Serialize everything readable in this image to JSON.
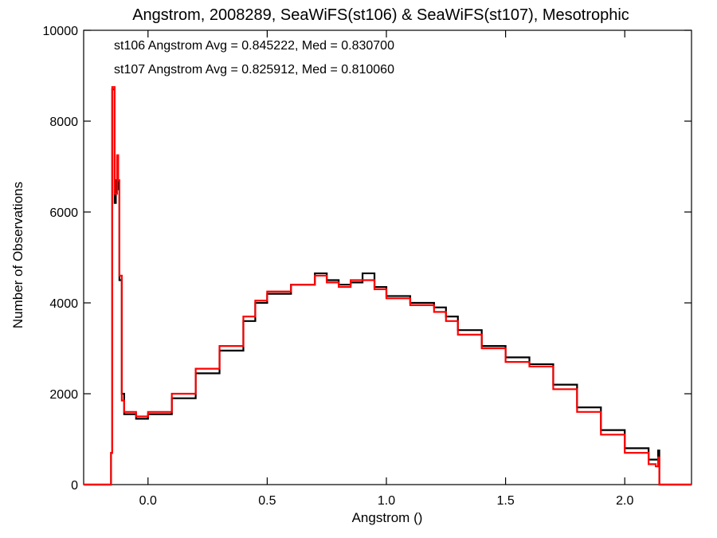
{
  "chart_data": {
    "type": "line",
    "title": "Angstrom, 2008289, SeaWiFS(st106) & SeaWiFS(st107), Mesotrophic",
    "xlabel": "Angstrom ()",
    "ylabel": "Number of Observations",
    "xlim": [
      -0.27,
      2.28
    ],
    "ylim": [
      0,
      10000
    ],
    "x_ticks": [
      0.0,
      0.5,
      1.0,
      1.5,
      2.0
    ],
    "x_tick_labels": [
      "0.0",
      "0.5",
      "1.0",
      "1.5",
      "2.0"
    ],
    "y_ticks": [
      0,
      2000,
      4000,
      6000,
      8000,
      10000
    ],
    "y_tick_labels": [
      "0",
      "2000",
      "4000",
      "6000",
      "8000",
      "10000"
    ],
    "grid": false,
    "step": true,
    "annotations": [
      {
        "text": "st106 Angstrom Avg = 0.845222, Med = 0.830700",
        "color": "#000000"
      },
      {
        "text": "st107 Angstrom Avg = 0.825912, Med = 0.810060",
        "color": "#ff0000"
      }
    ],
    "series": [
      {
        "color": "#000000",
        "points": [
          [
            -0.27,
            0
          ],
          [
            -0.16,
            0
          ],
          [
            -0.155,
            700
          ],
          [
            -0.15,
            8700
          ],
          [
            -0.14,
            6200
          ],
          [
            -0.135,
            6700
          ],
          [
            -0.125,
            6500
          ],
          [
            -0.12,
            4500
          ],
          [
            -0.11,
            2000
          ],
          [
            -0.1,
            1550
          ],
          [
            -0.05,
            1450
          ],
          [
            0.0,
            1550
          ],
          [
            0.1,
            1900
          ],
          [
            0.2,
            2450
          ],
          [
            0.3,
            2950
          ],
          [
            0.4,
            3600
          ],
          [
            0.45,
            4000
          ],
          [
            0.5,
            4200
          ],
          [
            0.6,
            4400
          ],
          [
            0.7,
            4650
          ],
          [
            0.75,
            4500
          ],
          [
            0.8,
            4400
          ],
          [
            0.85,
            4450
          ],
          [
            0.9,
            4650
          ],
          [
            0.95,
            4350
          ],
          [
            1.0,
            4150
          ],
          [
            1.1,
            4000
          ],
          [
            1.2,
            3900
          ],
          [
            1.25,
            3700
          ],
          [
            1.3,
            3400
          ],
          [
            1.4,
            3050
          ],
          [
            1.5,
            2800
          ],
          [
            1.6,
            2650
          ],
          [
            1.7,
            2200
          ],
          [
            1.8,
            1700
          ],
          [
            1.9,
            1200
          ],
          [
            2.0,
            800
          ],
          [
            2.1,
            550
          ],
          [
            2.13,
            550
          ],
          [
            2.14,
            750
          ],
          [
            2.145,
            0
          ],
          [
            2.28,
            0
          ]
        ]
      },
      {
        "color": "#ff0000",
        "points": [
          [
            -0.27,
            0
          ],
          [
            -0.16,
            0
          ],
          [
            -0.155,
            700
          ],
          [
            -0.15,
            8750
          ],
          [
            -0.14,
            6400
          ],
          [
            -0.13,
            7250
          ],
          [
            -0.125,
            6700
          ],
          [
            -0.12,
            4600
          ],
          [
            -0.11,
            1850
          ],
          [
            -0.1,
            1600
          ],
          [
            -0.05,
            1500
          ],
          [
            0.0,
            1600
          ],
          [
            0.1,
            2000
          ],
          [
            0.2,
            2550
          ],
          [
            0.3,
            3050
          ],
          [
            0.4,
            3700
          ],
          [
            0.45,
            4050
          ],
          [
            0.5,
            4250
          ],
          [
            0.6,
            4400
          ],
          [
            0.7,
            4600
          ],
          [
            0.75,
            4450
          ],
          [
            0.8,
            4350
          ],
          [
            0.85,
            4500
          ],
          [
            0.9,
            4500
          ],
          [
            0.95,
            4300
          ],
          [
            1.0,
            4100
          ],
          [
            1.1,
            3950
          ],
          [
            1.2,
            3800
          ],
          [
            1.25,
            3600
          ],
          [
            1.3,
            3300
          ],
          [
            1.4,
            3000
          ],
          [
            1.5,
            2700
          ],
          [
            1.6,
            2600
          ],
          [
            1.7,
            2100
          ],
          [
            1.8,
            1600
          ],
          [
            1.9,
            1100
          ],
          [
            2.0,
            700
          ],
          [
            2.1,
            450
          ],
          [
            2.13,
            400
          ],
          [
            2.14,
            600
          ],
          [
            2.145,
            0
          ],
          [
            2.28,
            0
          ]
        ]
      }
    ]
  }
}
